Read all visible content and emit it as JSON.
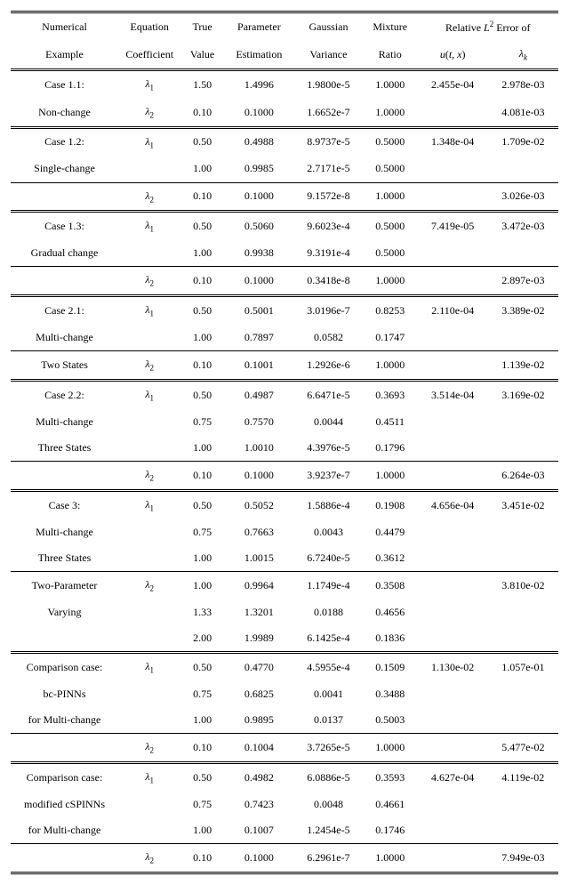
{
  "header": {
    "row1": [
      "Numerical",
      "Equation",
      "True",
      "Parameter",
      "Gaussian",
      "Mixture"
    ],
    "rel_err_span": "Relative L² Error of",
    "row2": [
      "Example",
      "Coefficient",
      "Value",
      "Estimation",
      "Variance",
      "Ratio"
    ],
    "rel_err_u": "u(t, x)",
    "rel_err_lambda": "λₖ"
  },
  "groups": [
    {
      "label_lines": [
        "Case 1.1:",
        "Non-change"
      ],
      "top_rule": "dbl",
      "rows": [
        {
          "coef": "λ₁",
          "true": "1.50",
          "est": "1.4996",
          "gvar": "1.9800e-5",
          "mix": "1.0000",
          "u": "2.455e-04",
          "lam": "2.978e-03"
        },
        {
          "coef": "λ₂",
          "true": "0.10",
          "est": "0.1000",
          "gvar": "1.6652e-7",
          "mix": "1.0000",
          "u": "",
          "lam": "4.081e-03"
        }
      ],
      "divider_before_idx": []
    },
    {
      "label_lines": [
        "Case 1.2:",
        "Single-change"
      ],
      "top_rule": "dbl",
      "rows": [
        {
          "coef": "λ₁",
          "true": "0.50",
          "est": "0.4988",
          "gvar": "8.9737e-5",
          "mix": "0.5000",
          "u": "1.348e-04",
          "lam": "1.709e-02"
        },
        {
          "coef": "",
          "true": "1.00",
          "est": "0.9985",
          "gvar": "2.7171e-5",
          "mix": "0.5000",
          "u": "",
          "lam": ""
        },
        {
          "coef": "λ₂",
          "true": "0.10",
          "est": "0.1000",
          "gvar": "9.1572e-8",
          "mix": "1.0000",
          "u": "",
          "lam": "3.026e-03"
        }
      ],
      "divider_before_idx": [
        2
      ]
    },
    {
      "label_lines": [
        "Case 1.3:",
        "Gradual change"
      ],
      "top_rule": "dbl",
      "rows": [
        {
          "coef": "λ₁",
          "true": "0.50",
          "est": "0.5060",
          "gvar": "9.6023e-4",
          "mix": "0.5000",
          "u": "7.419e-05",
          "lam": "3.472e-03"
        },
        {
          "coef": "",
          "true": "1.00",
          "est": "0.9938",
          "gvar": "9.3191e-4",
          "mix": "0.5000",
          "u": "",
          "lam": ""
        },
        {
          "coef": "λ₂",
          "true": "0.10",
          "est": "0.1000",
          "gvar": "0.3418e-8",
          "mix": "1.0000",
          "u": "",
          "lam": "2.897e-03"
        }
      ],
      "divider_before_idx": [
        2
      ]
    },
    {
      "label_lines": [
        "Case 2.1:",
        "Multi-change",
        "Two States"
      ],
      "top_rule": "dbl",
      "rows": [
        {
          "coef": "λ₁",
          "true": "0.50",
          "est": "0.5001",
          "gvar": "3.0196e-7",
          "mix": "0.8253",
          "u": "2.110e-04",
          "lam": "3.389e-02"
        },
        {
          "coef": "",
          "true": "1.00",
          "est": "0.7897",
          "gvar": "0.0582",
          "mix": "0.1747",
          "u": "",
          "lam": ""
        },
        {
          "coef": "λ₂",
          "true": "0.10",
          "est": "0.1001",
          "gvar": "1.2926e-6",
          "mix": "1.0000",
          "u": "",
          "lam": "1.139e-02"
        }
      ],
      "divider_before_idx": [
        2
      ]
    },
    {
      "label_lines": [
        "Case 2.2:",
        "Multi-change",
        "Three States"
      ],
      "top_rule": "dbl",
      "rows": [
        {
          "coef": "λ₁",
          "true": "0.50",
          "est": "0.4987",
          "gvar": "6.6471e-5",
          "mix": "0.3693",
          "u": "3.514e-04",
          "lam": "3.169e-02"
        },
        {
          "coef": "",
          "true": "0.75",
          "est": "0.7570",
          "gvar": "0.0044",
          "mix": "0.4511",
          "u": "",
          "lam": ""
        },
        {
          "coef": "",
          "true": "1.00",
          "est": "1.0010",
          "gvar": "4.3976e-5",
          "mix": "0.1796",
          "u": "",
          "lam": ""
        },
        {
          "coef": "λ₂",
          "true": "0.10",
          "est": "0.1000",
          "gvar": "3.9237e-7",
          "mix": "1.0000",
          "u": "",
          "lam": "6.264e-03"
        }
      ],
      "divider_before_idx": [
        3
      ]
    },
    {
      "label_lines": [
        "Case 3:",
        "Multi-change",
        "Three States",
        "Two-Parameter",
        "Varying"
      ],
      "top_rule": "dbl",
      "rows": [
        {
          "coef": "λ₁",
          "true": "0.50",
          "est": "0.5052",
          "gvar": "1.5886e-4",
          "mix": "0.1908",
          "u": "4.656e-04",
          "lam": "3.451e-02"
        },
        {
          "coef": "",
          "true": "0.75",
          "est": "0.7663",
          "gvar": "0.0043",
          "mix": "0.4479",
          "u": "",
          "lam": ""
        },
        {
          "coef": "",
          "true": "1.00",
          "est": "1.0015",
          "gvar": "6.7240e-5",
          "mix": "0.3612",
          "u": "",
          "lam": ""
        },
        {
          "coef": "λ₂",
          "true": "1.00",
          "est": "0.9964",
          "gvar": "1.1749e-4",
          "mix": "0.3508",
          "u": "",
          "lam": "3.810e-02"
        },
        {
          "coef": "",
          "true": "1.33",
          "est": "1.3201",
          "gvar": "0.0188",
          "mix": "0.4656",
          "u": "",
          "lam": ""
        },
        {
          "coef": "",
          "true": "2.00",
          "est": "1.9989",
          "gvar": "6.1425e-4",
          "mix": "0.1836",
          "u": "",
          "lam": ""
        }
      ],
      "divider_before_idx": [
        3
      ]
    },
    {
      "label_lines": [
        "Comparison case:",
        "bc-PINNs",
        "for Multi-change"
      ],
      "top_rule": "dbl",
      "rows": [
        {
          "coef": "λ₁",
          "true": "0.50",
          "est": "0.4770",
          "gvar": "4.5955e-4",
          "mix": "0.1509",
          "u": "1.130e-02",
          "lam": "1.057e-01"
        },
        {
          "coef": "",
          "true": "0.75",
          "est": "0.6825",
          "gvar": "0.0041",
          "mix": "0.3488",
          "u": "",
          "lam": ""
        },
        {
          "coef": "",
          "true": "1.00",
          "est": "0.9895",
          "gvar": "0.0137",
          "mix": "0.5003",
          "u": "",
          "lam": ""
        },
        {
          "coef": "λ₂",
          "true": "0.10",
          "est": "0.1004",
          "gvar": "3.7265e-5",
          "mix": "1.0000",
          "u": "",
          "lam": "5.477e-02"
        }
      ],
      "divider_before_idx": [
        3
      ]
    },
    {
      "label_lines": [
        "Comparison case:",
        "modified cSPINNs",
        "for Multi-change"
      ],
      "top_rule": "dbl",
      "rows": [
        {
          "coef": "λ₁",
          "true": "0.50",
          "est": "0.4982",
          "gvar": "6.0886e-5",
          "mix": "0.3593",
          "u": "4.627e-04",
          "lam": "4.119e-02"
        },
        {
          "coef": "",
          "true": "0.75",
          "est": "0.7423",
          "gvar": "0.0048",
          "mix": "0.4661",
          "u": "",
          "lam": ""
        },
        {
          "coef": "",
          "true": "1.00",
          "est": "0.1007",
          "gvar": "1.2454e-5",
          "mix": "0.1746",
          "u": "",
          "lam": ""
        },
        {
          "coef": "λ₂",
          "true": "0.10",
          "est": "0.1000",
          "gvar": "6.2961e-7",
          "mix": "1.0000",
          "u": "",
          "lam": "7.949e-03"
        }
      ],
      "divider_before_idx": [
        3
      ],
      "bottom_rule": "dbl"
    }
  ]
}
